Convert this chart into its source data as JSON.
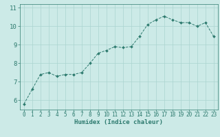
{
  "x": [
    0,
    1,
    2,
    3,
    4,
    5,
    6,
    7,
    8,
    9,
    10,
    11,
    12,
    13,
    14,
    15,
    16,
    17,
    18,
    19,
    20,
    21,
    22,
    23
  ],
  "y": [
    5.8,
    6.6,
    7.4,
    7.5,
    7.3,
    7.4,
    7.4,
    7.5,
    8.0,
    8.55,
    8.7,
    8.9,
    8.85,
    8.9,
    9.45,
    10.1,
    10.35,
    10.55,
    10.35,
    10.2,
    10.2,
    10.0,
    10.2,
    9.45
  ],
  "xlabel": "Humidex (Indice chaleur)",
  "ylim": [
    5.5,
    11.2
  ],
  "xlim": [
    -0.5,
    23.5
  ],
  "yticks": [
    6,
    7,
    8,
    9,
    10,
    11
  ],
  "xticks": [
    0,
    1,
    2,
    3,
    4,
    5,
    6,
    7,
    8,
    9,
    10,
    11,
    12,
    13,
    14,
    15,
    16,
    17,
    18,
    19,
    20,
    21,
    22,
    23
  ],
  "line_color": "#2d7a6e",
  "marker_color": "#2d7a6e",
  "bg_color": "#cceae7",
  "grid_color": "#aad4cf",
  "tick_color": "#2d7a6e",
  "label_color": "#2d7a6e",
  "xlabel_fontsize": 6.5,
  "tick_fontsize": 5.5,
  "ytick_fontsize": 6.5
}
